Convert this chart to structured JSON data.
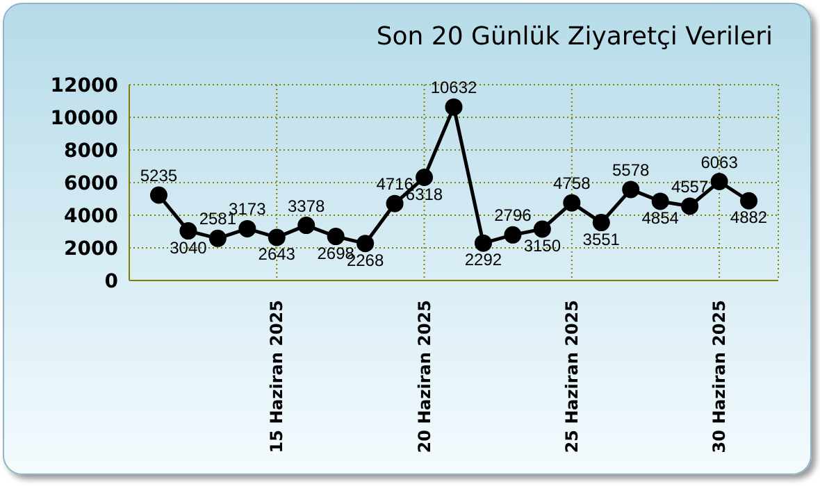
{
  "chart_data": {
    "type": "line",
    "title": "Son 20 Günlük Ziyaretçi Verileri",
    "x": [
      "2025-06-11",
      "2025-06-12",
      "2025-06-13",
      "2025-06-14",
      "2025-06-15",
      "2025-06-16",
      "2025-06-17",
      "2025-06-18",
      "2025-06-19",
      "2025-06-20",
      "2025-06-21",
      "2025-06-22",
      "2025-06-23",
      "2025-06-24",
      "2025-06-25",
      "2025-06-26",
      "2025-06-27",
      "2025-06-28",
      "2025-06-29",
      "2025-06-30",
      "2025-07-01"
    ],
    "series": [
      {
        "color": "#000000",
        "values": [
          5235,
          3040,
          2581,
          3173,
          2643,
          3378,
          2698,
          2268,
          4716,
          6318,
          10632,
          2292,
          2796,
          3150,
          4758,
          3551,
          5578,
          4854,
          4557,
          6063,
          4882
        ]
      }
    ],
    "xlim": [
      "2025-06-10",
      "2025-07-02"
    ],
    "xticks": [
      {
        "value": "2025-06-15",
        "label": "15 Haziran 2025"
      },
      {
        "value": "2025-06-20",
        "label": "20 Haziran 2025"
      },
      {
        "value": "2025-06-25",
        "label": "25 Haziran 2025"
      },
      {
        "value": "2025-06-30",
        "label": "30 Haziran 2025"
      }
    ],
    "ylim": [
      0,
      12000
    ],
    "yticks": [
      0,
      2000,
      4000,
      6000,
      8000,
      10000,
      12000
    ],
    "grid": true,
    "marker": "circle",
    "line_style": "solid",
    "data_labels": true
  }
}
